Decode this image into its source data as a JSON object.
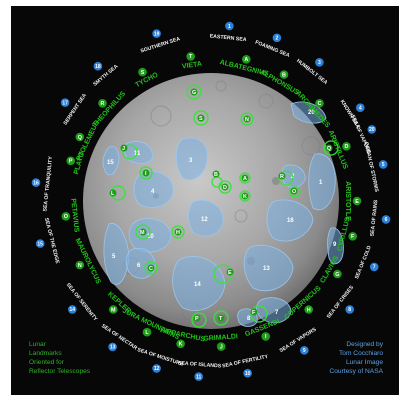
{
  "seas": [
    {
      "n": "1",
      "name": "EASTERN SEA"
    },
    {
      "n": "2",
      "name": "FOAMING SEA"
    },
    {
      "n": "3",
      "name": "HUMBOLT SEA"
    },
    {
      "n": "4",
      "name": "KNOWN SEA"
    },
    {
      "n": "5",
      "name": "OCEAN OF STORMS"
    },
    {
      "n": "6",
      "name": "SEA OF RAINS"
    },
    {
      "n": "7",
      "name": "SEA OF COLD"
    },
    {
      "n": "8",
      "name": "SEA OF CRISES"
    },
    {
      "n": "9",
      "name": "SEA OF VAPORS"
    },
    {
      "n": "10",
      "name": "SEA OF FERTILITY"
    },
    {
      "n": "11",
      "name": "SEA OF ISLANDS"
    },
    {
      "n": "12",
      "name": "SEA OF MOISTURE"
    },
    {
      "n": "13",
      "name": "SEA OF NECTAR"
    },
    {
      "n": "14",
      "name": "SEA OF SERENITY"
    },
    {
      "n": "15",
      "name": "SEA OF THE EDGE"
    },
    {
      "n": "16",
      "name": "SEA OF TRANQUILITY"
    },
    {
      "n": "17",
      "name": "SERPENT SEA"
    },
    {
      "n": "18",
      "name": "SMYTH SEA"
    },
    {
      "n": "19",
      "name": "SOUTHERN SEA"
    },
    {
      "n": "20",
      "name": "SEA OF VAPORS"
    }
  ],
  "craters": [
    {
      "l": "A",
      "name": "ALBATEGNIUS"
    },
    {
      "l": "B",
      "name": "ALPHONSUS"
    },
    {
      "l": "C",
      "name": "ARCHIMEDES"
    },
    {
      "l": "D",
      "name": "ARISTILLUS"
    },
    {
      "l": "E",
      "name": "ARISTOTLE"
    },
    {
      "l": "F",
      "name": "CYRILLUS"
    },
    {
      "l": "G",
      "name": "CLAVIUS"
    },
    {
      "l": "H",
      "name": "COPERNICUS"
    },
    {
      "l": "I",
      "name": "GASSENDI"
    },
    {
      "l": "J",
      "name": "GRIMALDI"
    },
    {
      "l": "K",
      "name": "HIPPARCHUS"
    },
    {
      "l": "L",
      "name": "JURA MOUNTAINS"
    },
    {
      "l": "M",
      "name": "KEPLER"
    },
    {
      "l": "N",
      "name": "MAUROLYCUS"
    },
    {
      "l": "O",
      "name": "PETAVIUS"
    },
    {
      "l": "P",
      "name": "PLATO"
    },
    {
      "l": "Q",
      "name": "PTOLEMEUS"
    },
    {
      "l": "R",
      "name": "THEOPHILUS"
    },
    {
      "l": "S",
      "name": "TYCHO"
    },
    {
      "l": "T",
      "name": "VIETA"
    }
  ],
  "moon_mare_labels": [
    "20",
    "15",
    "11",
    "3",
    "4",
    "1",
    "16",
    "12",
    "2",
    "9",
    "10",
    "5",
    "6",
    "14",
    "13",
    "7",
    "8"
  ],
  "moon_crater_labels": [
    "G",
    "S",
    "N",
    "J",
    "Q",
    "I",
    "A",
    "D",
    "K",
    "R",
    "L",
    "O",
    "M",
    "H",
    "C",
    "E",
    "F",
    "P",
    "T",
    "B"
  ],
  "footer": {
    "left": [
      "Lunar",
      "Landmarks",
      "Oriented for",
      "Reflector Telescopes"
    ],
    "right": [
      "Designed by",
      "Tom Cocchiaro",
      "Lunar Image",
      "Courtesy of NASA"
    ]
  },
  "colors": {
    "background": "#070707",
    "sea_marker": "#2b80d9",
    "crater_marker": "#1f9d1a",
    "crater_label": "#22c21a",
    "mare_fill": "#7ab0e2"
  }
}
